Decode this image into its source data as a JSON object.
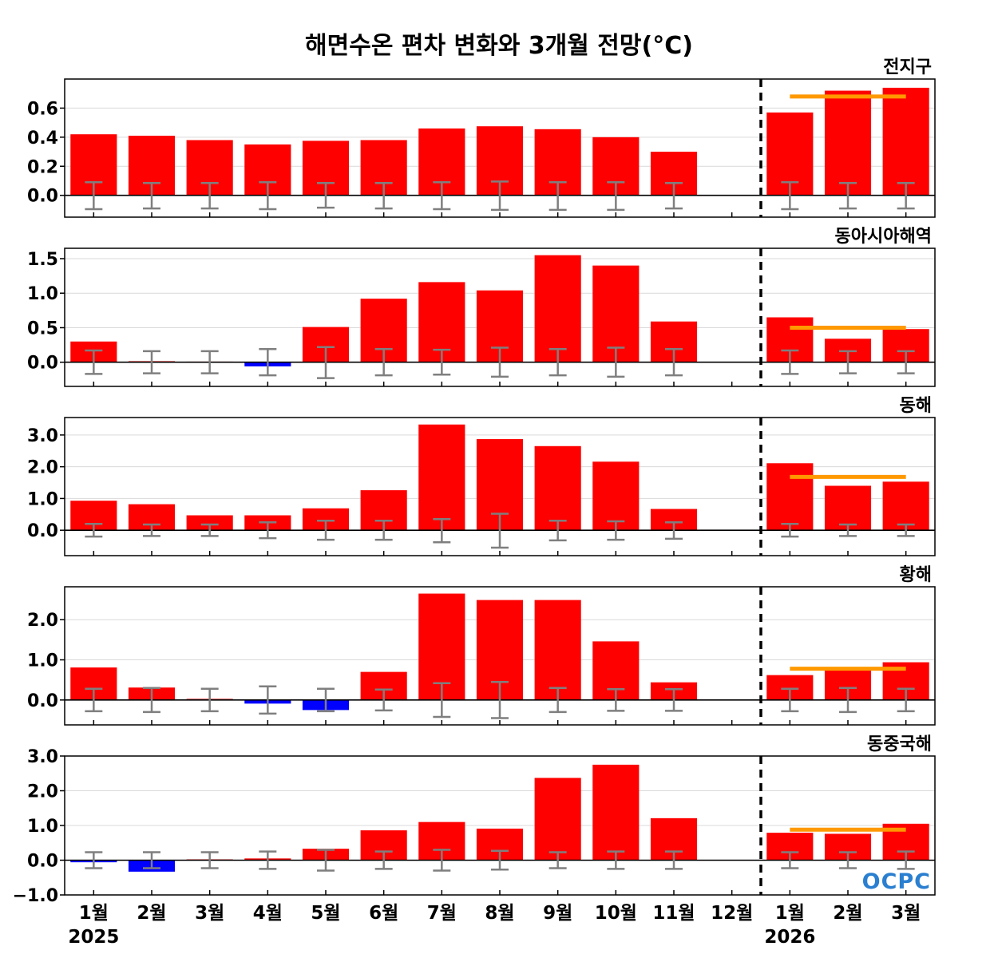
{
  "chart_data": {
    "type": "bar",
    "title": "해면수온 편차 변화와 3개월 전망(°C)",
    "categories": [
      "1월",
      "2월",
      "3월",
      "4월",
      "5월",
      "6월",
      "7월",
      "8월",
      "9월",
      "10월",
      "11월",
      "12월",
      "1월",
      "2월",
      "3월"
    ],
    "year_labels": [
      {
        "category_index": 0,
        "text": "2025"
      },
      {
        "category_index": 12,
        "text": "2026"
      }
    ],
    "forecast_divider_after_index": 11,
    "logo_text": "OCPC",
    "colors": {
      "positive": "#ff0000",
      "negative": "#0000ff",
      "near_zero_positive": "#f08080",
      "error_bar": "#7f7f7f",
      "outlook_line": "#ff9900",
      "grid": "#d9d9d9",
      "divider": "#000000"
    },
    "panels": [
      {
        "name": "전지구",
        "ylim": [
          -0.15,
          0.8
        ],
        "yticks": [
          0.0,
          0.2,
          0.4,
          0.6
        ],
        "tick_labels": [
          "0.0",
          "0.2",
          "0.4",
          "0.6"
        ],
        "values": [
          0.42,
          0.41,
          0.38,
          0.35,
          0.375,
          0.38,
          0.46,
          0.475,
          0.455,
          0.4,
          0.3,
          null,
          0.57,
          0.72,
          0.74
        ],
        "error_upper": [
          0.09,
          0.085,
          0.085,
          0.09,
          0.085,
          0.085,
          0.09,
          0.095,
          0.09,
          0.09,
          0.085,
          null,
          0.09,
          0.085,
          0.085
        ],
        "error_lower": [
          -0.095,
          -0.09,
          -0.09,
          -0.095,
          -0.085,
          -0.09,
          -0.095,
          -0.1,
          -0.1,
          -0.1,
          -0.09,
          null,
          -0.095,
          -0.09,
          -0.09
        ],
        "outlook": {
          "from_index": 12,
          "to_index": 14,
          "value": 0.68
        }
      },
      {
        "name": "동아시아해역",
        "ylim": [
          -0.35,
          1.65
        ],
        "yticks": [
          0.0,
          0.5,
          1.0,
          1.5
        ],
        "tick_labels": [
          "0.0",
          "0.5",
          "1.0",
          "1.5"
        ],
        "values": [
          0.3,
          0.02,
          0.01,
          -0.06,
          0.51,
          0.92,
          1.16,
          1.04,
          1.55,
          1.4,
          0.59,
          null,
          0.65,
          0.34,
          0.48
        ],
        "error_upper": [
          0.17,
          0.16,
          0.16,
          0.19,
          0.22,
          0.19,
          0.18,
          0.21,
          0.19,
          0.21,
          0.19,
          null,
          0.17,
          0.16,
          0.16
        ],
        "error_lower": [
          -0.17,
          -0.16,
          -0.16,
          -0.19,
          -0.23,
          -0.19,
          -0.18,
          -0.21,
          -0.19,
          -0.21,
          -0.19,
          null,
          -0.17,
          -0.16,
          -0.16
        ],
        "outlook": {
          "from_index": 12,
          "to_index": 14,
          "value": 0.5
        }
      },
      {
        "name": "동해",
        "ylim": [
          -0.8,
          3.55
        ],
        "yticks": [
          0.0,
          1.0,
          2.0,
          3.0
        ],
        "tick_labels": [
          "0.0",
          "1.0",
          "2.0",
          "3.0"
        ],
        "values": [
          0.93,
          0.82,
          0.47,
          0.47,
          0.69,
          1.26,
          3.33,
          2.87,
          2.65,
          2.16,
          0.67,
          null,
          2.11,
          1.4,
          1.53
        ],
        "error_upper": [
          0.2,
          0.18,
          0.18,
          0.25,
          0.3,
          0.3,
          0.35,
          0.52,
          0.3,
          0.28,
          0.25,
          null,
          0.2,
          0.18,
          0.18
        ],
        "error_lower": [
          -0.2,
          -0.18,
          -0.18,
          -0.25,
          -0.3,
          -0.3,
          -0.38,
          -0.55,
          -0.32,
          -0.3,
          -0.27,
          null,
          -0.2,
          -0.18,
          -0.18
        ],
        "outlook": {
          "from_index": 12,
          "to_index": 14,
          "value": 1.68
        }
      },
      {
        "name": "황해",
        "ylim": [
          -0.62,
          2.82
        ],
        "yticks": [
          0.0,
          1.0,
          2.0
        ],
        "tick_labels": [
          "0.0",
          "1.0",
          "2.0"
        ],
        "values": [
          0.81,
          0.31,
          0.04,
          -0.09,
          -0.25,
          0.7,
          2.65,
          2.49,
          2.49,
          1.46,
          0.44,
          null,
          0.62,
          0.78,
          0.94
        ],
        "error_upper": [
          0.28,
          0.3,
          0.28,
          0.34,
          0.28,
          0.26,
          0.42,
          0.45,
          0.3,
          0.27,
          0.27,
          null,
          0.28,
          0.3,
          0.28
        ],
        "error_lower": [
          -0.28,
          -0.3,
          -0.28,
          -0.34,
          -0.28,
          -0.26,
          -0.42,
          -0.45,
          -0.3,
          -0.27,
          -0.27,
          null,
          -0.28,
          -0.3,
          -0.28
        ],
        "outlook": {
          "from_index": 12,
          "to_index": 14,
          "value": 0.78
        }
      },
      {
        "name": "동중국해",
        "ylim": [
          -1.0,
          3.0
        ],
        "yticks": [
          -1.0,
          0.0,
          1.0,
          2.0,
          3.0
        ],
        "tick_labels": [
          "−1.0",
          "0.0",
          "1.0",
          "2.0",
          "3.0"
        ],
        "values": [
          -0.06,
          -0.33,
          0.03,
          0.05,
          0.33,
          0.86,
          1.1,
          0.91,
          2.37,
          2.75,
          1.21,
          null,
          0.79,
          0.76,
          1.05
        ],
        "error_upper": [
          0.23,
          0.23,
          0.23,
          0.25,
          0.3,
          0.25,
          0.3,
          0.27,
          0.23,
          0.25,
          0.25,
          null,
          0.23,
          0.23,
          0.25
        ],
        "error_lower": [
          -0.23,
          -0.23,
          -0.23,
          -0.25,
          -0.3,
          -0.25,
          -0.3,
          -0.27,
          -0.23,
          -0.25,
          -0.25,
          null,
          -0.23,
          -0.23,
          -0.25
        ],
        "outlook": {
          "from_index": 12,
          "to_index": 14,
          "value": 0.88
        }
      }
    ]
  }
}
